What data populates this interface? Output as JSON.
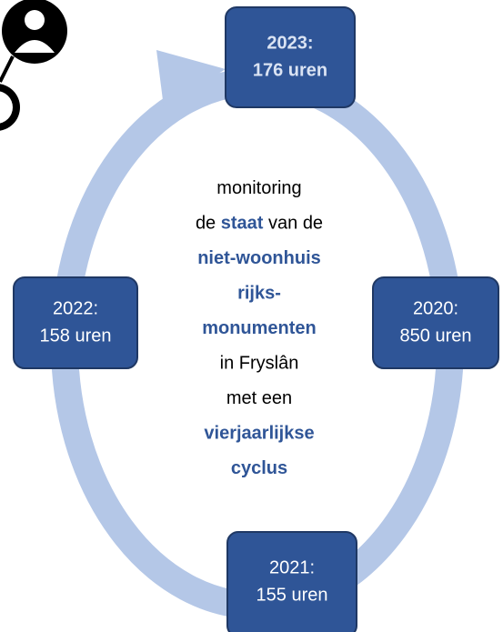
{
  "nodes": [
    {
      "title": "2023:",
      "value": "176 uren",
      "bold": true
    },
    {
      "title": "2022:",
      "value": "158 uren",
      "bold": false
    },
    {
      "title": "2020:",
      "value": "850 uren",
      "bold": false
    },
    {
      "title": "2021:",
      "value": "155 uren",
      "bold": false
    }
  ],
  "center": {
    "lines": [
      [
        {
          "text": "monitoring",
          "emphasis": false
        }
      ],
      [
        {
          "text": "de ",
          "emphasis": false
        },
        {
          "text": "staat",
          "emphasis": true
        },
        {
          "text": " van de",
          "emphasis": false
        }
      ],
      [
        {
          "text": "niet-woonhuis",
          "emphasis": true
        }
      ],
      [
        {
          "text": "rijks-",
          "emphasis": true
        }
      ],
      [
        {
          "text": "monumenten",
          "emphasis": true
        }
      ],
      [
        {
          "text": "in Fryslân",
          "emphasis": false
        }
      ],
      [
        {
          "text": "met een",
          "emphasis": false
        }
      ],
      [
        {
          "text": "vierjaarlijkse",
          "emphasis": true
        }
      ],
      [
        {
          "text": "cyclus",
          "emphasis": true
        }
      ]
    ]
  }
}
